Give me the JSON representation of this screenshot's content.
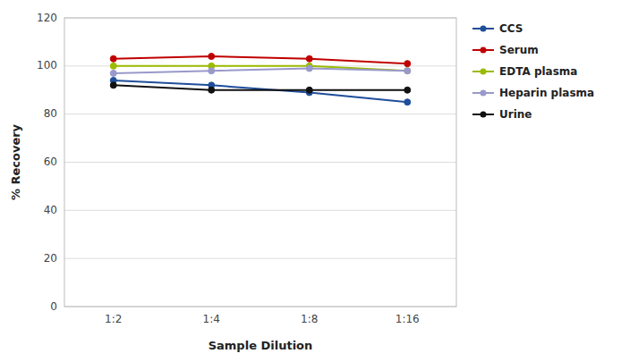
{
  "chart_data": {
    "type": "line",
    "categories": [
      "1:2",
      "1:4",
      "1:8",
      "1:16"
    ],
    "series": [
      {
        "name": "CCS",
        "color": "#1F4E9B",
        "values": [
          94,
          92,
          89,
          85
        ]
      },
      {
        "name": "Serum",
        "color": "#C00000",
        "values": [
          103,
          104,
          103,
          101
        ]
      },
      {
        "name": "EDTA plasma",
        "color": "#9BBB00",
        "values": [
          100,
          100,
          100,
          98
        ]
      },
      {
        "name": "Heparin plasma",
        "color": "#9999CC",
        "values": [
          97,
          98,
          99,
          98
        ]
      },
      {
        "name": "Urine",
        "color": "#111111",
        "values": [
          92,
          90,
          90,
          90
        ]
      }
    ],
    "xlabel": "Sample Dilution",
    "ylabel": "% Recovery",
    "ylim": [
      0,
      120
    ],
    "yticks": [
      0,
      20,
      40,
      60,
      80,
      100,
      120
    ],
    "grid": true,
    "legend": "right",
    "marker": "circle"
  }
}
